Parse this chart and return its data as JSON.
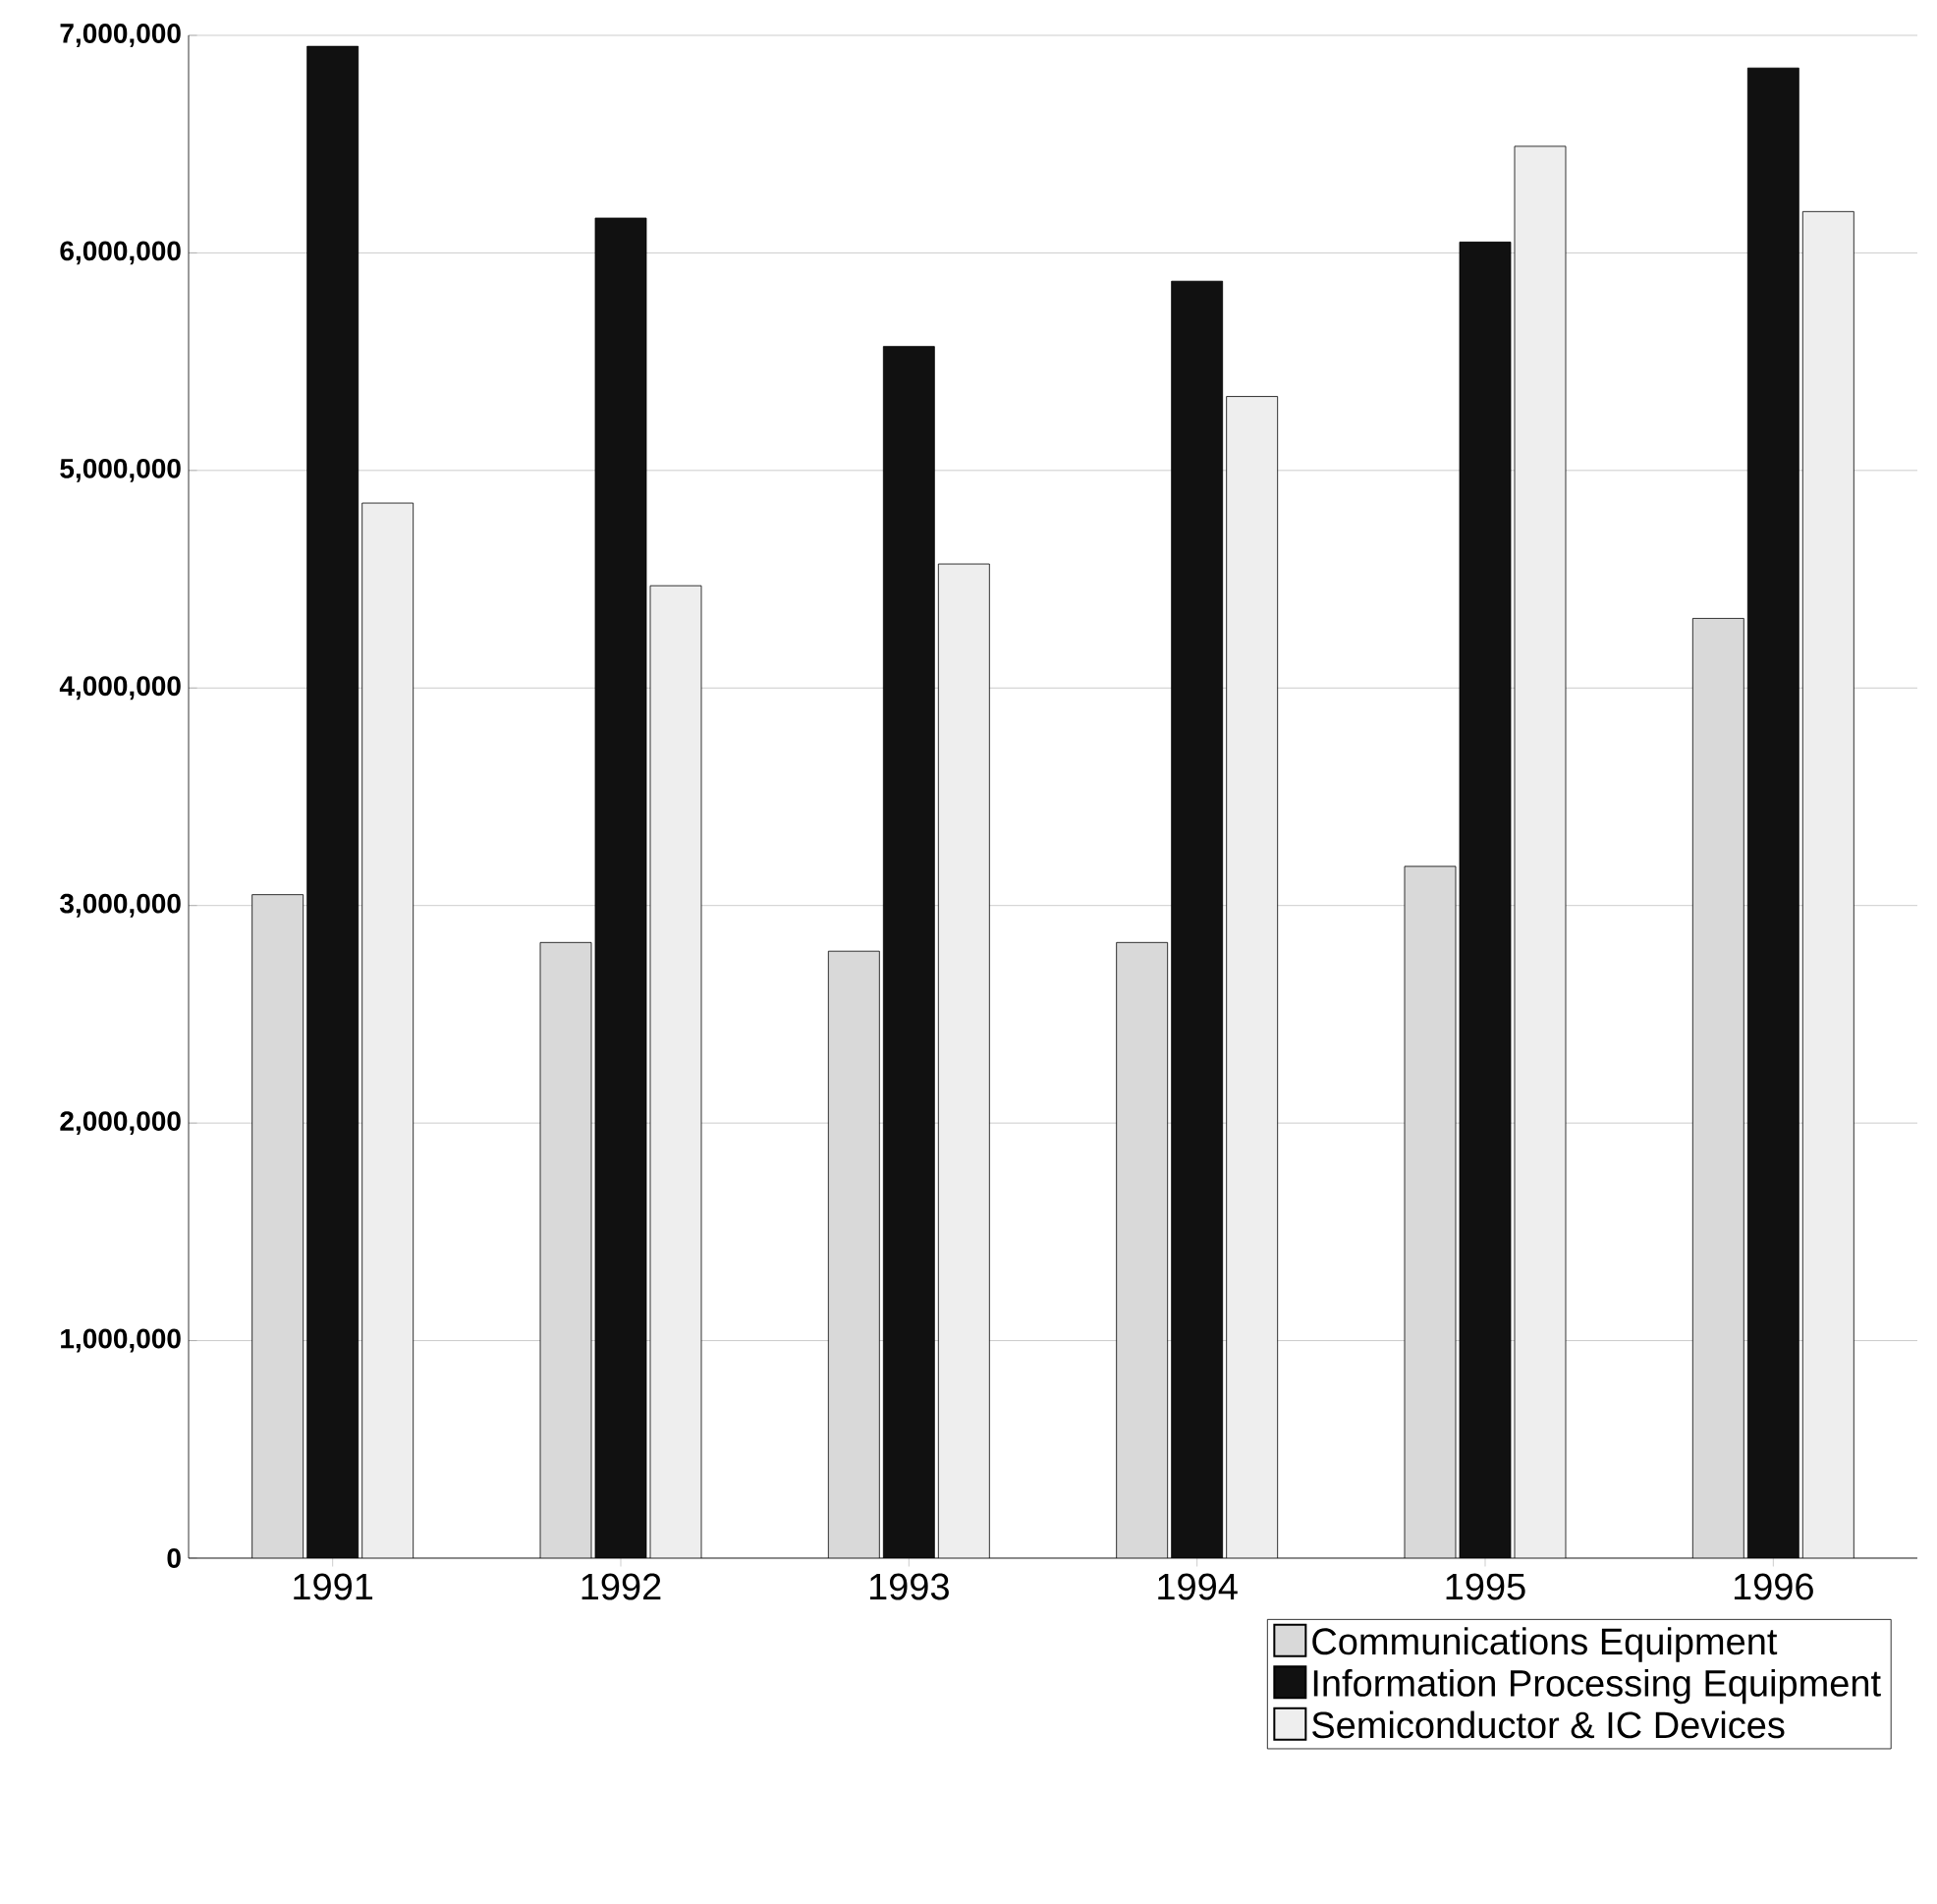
{
  "chart_data": {
    "type": "bar",
    "categories": [
      "1991",
      "1992",
      "1993",
      "1994",
      "1995",
      "1996"
    ],
    "series": [
      {
        "name": "Communications Equipment",
        "color": "#d9d9d9",
        "values": [
          3050000,
          2830000,
          2790000,
          2830000,
          3180000,
          4320000
        ]
      },
      {
        "name": "Information Processing Equipment",
        "color": "#111111",
        "values": [
          6950000,
          6160000,
          5570000,
          5870000,
          6050000,
          6850000
        ]
      },
      {
        "name": "Semiconductor & IC Devices",
        "color": "#eeeeee",
        "values": [
          4850000,
          4470000,
          4570000,
          5340000,
          6490000,
          6190000
        ]
      }
    ],
    "ylim": [
      0,
      7000000
    ],
    "yticks": [
      {
        "value": 0,
        "label": "0"
      },
      {
        "value": 1000000,
        "label": "1,000,000"
      },
      {
        "value": 2000000,
        "label": "2,000,000"
      },
      {
        "value": 3000000,
        "label": "3,000,000"
      },
      {
        "value": 4000000,
        "label": "4,000,000"
      },
      {
        "value": 5000000,
        "label": "5,000,000"
      },
      {
        "value": 6000000,
        "label": "6,000,000"
      },
      {
        "value": 7000000,
        "label": "7,000,000"
      }
    ],
    "grid": "y",
    "legend": "bottom right"
  }
}
